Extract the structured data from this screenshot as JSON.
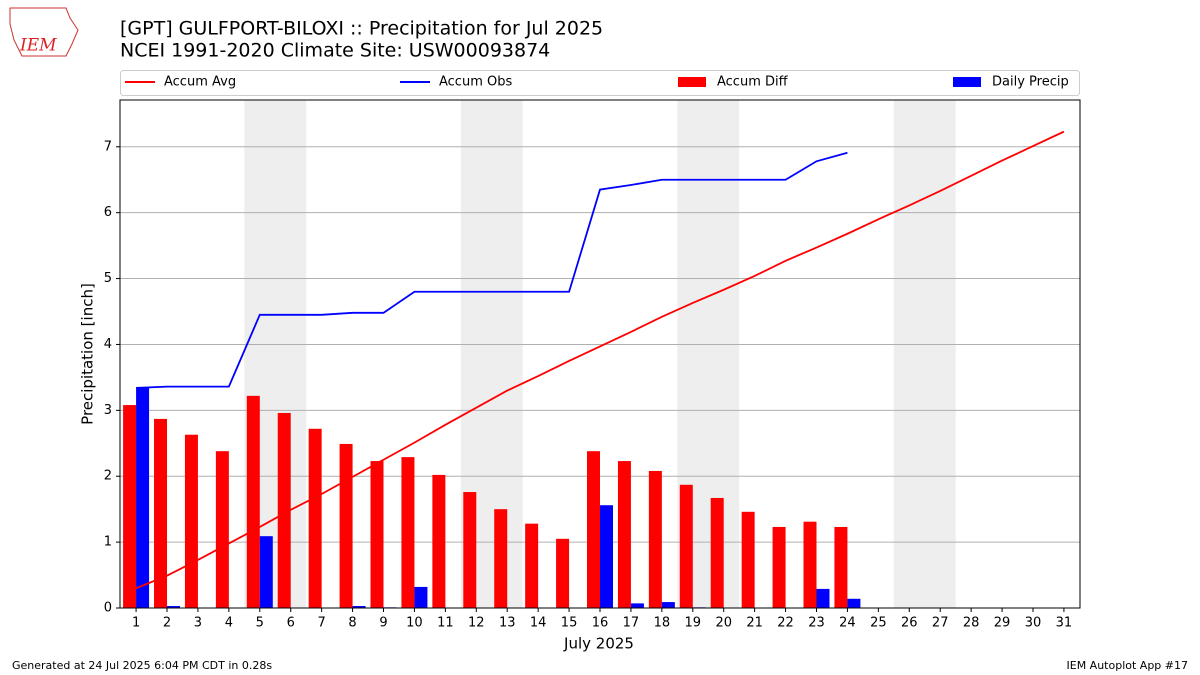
{
  "logo_text": "IEM",
  "footer_left": "Generated at 24 Jul 2025 6:04 PM CDT in 0.28s",
  "footer_right": "IEM Autoplot App #17",
  "chart_data": {
    "type": "combo",
    "title": "[GPT] GULFPORT-BILOXI :: Precipitation for Jul 2025",
    "subtitle": "NCEI 1991-2020 Climate Site: USW00093874",
    "x_label": "July 2025",
    "y_label": "Precipitation [inch]",
    "x": [
      1,
      2,
      3,
      4,
      5,
      6,
      7,
      8,
      9,
      10,
      11,
      12,
      13,
      14,
      15,
      16,
      17,
      18,
      19,
      20,
      21,
      22,
      23,
      24,
      25,
      26,
      27,
      28,
      29,
      30,
      31
    ],
    "xlim": [
      0.48,
      31.52
    ],
    "xticks": [
      1,
      2,
      3,
      4,
      5,
      6,
      7,
      8,
      9,
      10,
      11,
      12,
      13,
      14,
      15,
      16,
      17,
      18,
      19,
      20,
      21,
      22,
      23,
      24,
      25,
      26,
      27,
      28,
      29,
      30,
      31
    ],
    "ylim": [
      0,
      7.71
    ],
    "yticks": [
      0,
      1,
      2,
      3,
      4,
      5,
      6,
      7
    ],
    "grid": true,
    "weekend_shading": [
      [
        4.5,
        6.5
      ],
      [
        11.5,
        13.5
      ],
      [
        18.5,
        20.5
      ],
      [
        25.5,
        27.5
      ]
    ],
    "shading_color": "#eeeeee",
    "series": [
      {
        "name": "Accum Avg",
        "type": "line",
        "color": "#ff0000",
        "values": [
          0.3,
          0.49,
          0.73,
          0.98,
          1.23,
          1.49,
          1.73,
          1.99,
          2.25,
          2.51,
          2.78,
          3.04,
          3.3,
          3.52,
          3.75,
          3.97,
          4.19,
          4.42,
          4.63,
          4.83,
          5.04,
          5.27,
          5.47,
          5.68,
          5.9,
          6.11,
          6.33,
          6.56,
          6.79,
          7.01,
          7.23
        ]
      },
      {
        "name": "Accum Obs",
        "type": "line",
        "color": "#0000ff",
        "values": [
          3.34,
          3.36,
          3.36,
          3.36,
          4.45,
          4.45,
          4.45,
          4.48,
          4.48,
          4.8,
          4.8,
          4.8,
          4.8,
          4.8,
          4.8,
          6.35,
          6.42,
          6.5,
          6.5,
          6.5,
          6.5,
          6.5,
          6.78,
          6.91,
          null,
          null,
          null,
          null,
          null,
          null,
          null
        ]
      },
      {
        "name": "Accum Diff",
        "type": "bar",
        "color": "#ff0000",
        "values": [
          3.08,
          2.87,
          2.63,
          2.38,
          3.22,
          2.96,
          2.72,
          2.49,
          2.23,
          2.29,
          2.02,
          1.76,
          1.5,
          1.28,
          1.05,
          2.38,
          2.23,
          2.08,
          1.87,
          1.67,
          1.46,
          1.23,
          1.31,
          1.23,
          null,
          null,
          null,
          null,
          null,
          null,
          null
        ]
      },
      {
        "name": "Daily Precip",
        "type": "bar",
        "color": "#0000ff",
        "values": [
          3.34,
          0.03,
          0,
          0,
          1.09,
          0,
          0,
          0.03,
          0.01,
          0.32,
          0,
          0,
          0,
          0,
          0,
          1.56,
          0.07,
          0.09,
          0.01,
          0,
          0,
          0,
          0.29,
          0.14,
          null,
          null,
          null,
          null,
          null,
          null,
          null
        ]
      }
    ]
  }
}
